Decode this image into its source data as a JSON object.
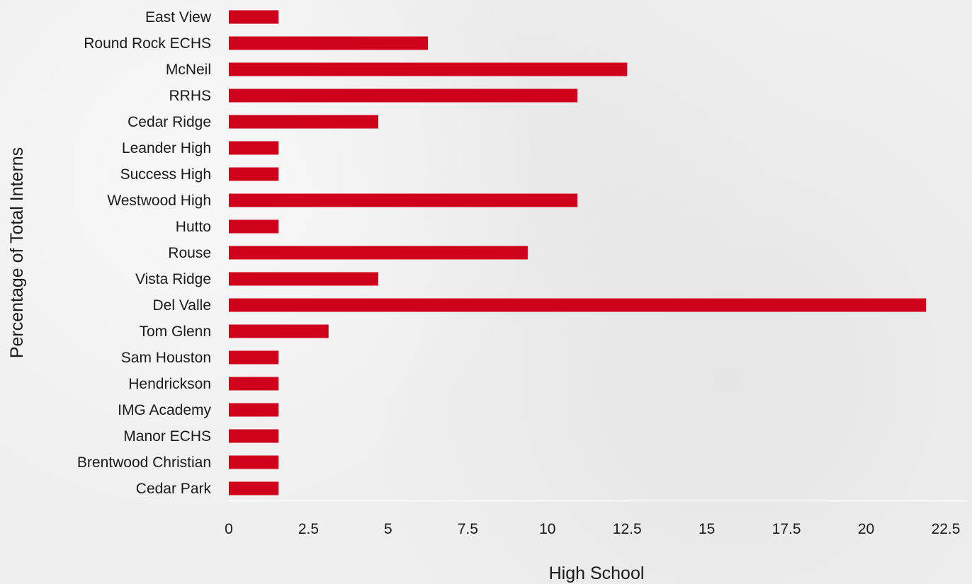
{
  "chart_data": {
    "type": "bar",
    "orientation": "horizontal",
    "categories": [
      "East View",
      "Round Rock ECHS",
      "McNeil",
      "RRHS",
      "Cedar Ridge",
      "Leander High",
      "Success High",
      "Westwood High",
      "Hutto",
      "Rouse",
      "Vista Ridge",
      "Del Valle",
      "Tom Glenn",
      "Sam Houston",
      "Hendrickson",
      "IMG Academy",
      "Manor ECHS",
      "Brentwood Christian",
      "Cedar Park"
    ],
    "values": [
      1.56,
      6.25,
      12.5,
      10.94,
      4.69,
      1.56,
      1.56,
      10.94,
      1.56,
      9.38,
      4.69,
      21.88,
      3.13,
      1.56,
      1.56,
      1.56,
      1.56,
      1.56,
      1.56
    ],
    "xticks": [
      "0",
      "2.5",
      "5",
      "7.5",
      "10",
      "12.5",
      "15",
      "17.5",
      "20",
      "22.5"
    ],
    "xlim": [
      0,
      22.5
    ],
    "xlabel": "High School",
    "ylabel": "Percentage of Total Interns",
    "bar_color": "#d0021b",
    "grid": false,
    "legend": "none"
  }
}
